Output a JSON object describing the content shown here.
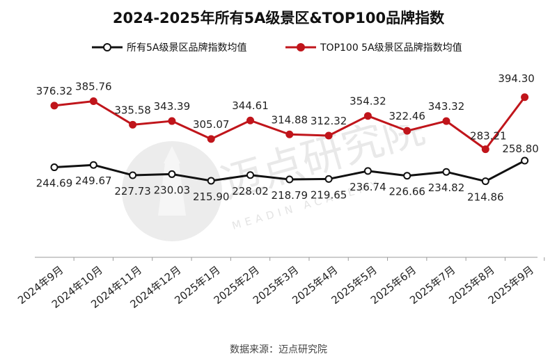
{
  "chart_data": {
    "type": "line",
    "title": "2024-2025年所有5A级景区&TOP100品牌指数",
    "categories": [
      "2024年9月",
      "2024年10月",
      "2024年11月",
      "2024年12月",
      "2025年1月",
      "2025年2月",
      "2025年3月",
      "2025年4月",
      "2025年5月",
      "2025年6月",
      "2025年7月",
      "2025年8月",
      "2025年9月"
    ],
    "series": [
      {
        "name": "所有5A级景区品牌指数均值",
        "color": "#111111",
        "values": [
          244.69,
          249.67,
          227.73,
          230.03,
          215.9,
          228.02,
          218.79,
          219.65,
          236.74,
          226.66,
          234.82,
          214.86,
          258.8
        ],
        "labels": [
          "244.69",
          "249.67",
          "227.73",
          "230.03",
          "215.90",
          "228.02",
          "218.79",
          "219.65",
          "236.74",
          "226.66",
          "234.82",
          "214.86",
          "258.80"
        ]
      },
      {
        "name": "TOP100 5A级景区品牌指数均值",
        "color": "#c0151b",
        "values": [
          376.32,
          385.76,
          335.58,
          343.39,
          305.07,
          344.61,
          314.88,
          312.32,
          354.32,
          322.46,
          343.32,
          283.21,
          394.3
        ],
        "labels": [
          "376.32",
          "385.76",
          "335.58",
          "343.39",
          "305.07",
          "344.61",
          "314.88",
          "312.32",
          "354.32",
          "322.46",
          "343.32",
          "283.21",
          "394.30"
        ]
      }
    ],
    "grid": false,
    "legend_position": "top"
  },
  "source_text": "数据来源：迈点研究院",
  "watermark": {
    "text": "迈点研究院",
    "subtext": "MEADIN ACADEMY"
  }
}
